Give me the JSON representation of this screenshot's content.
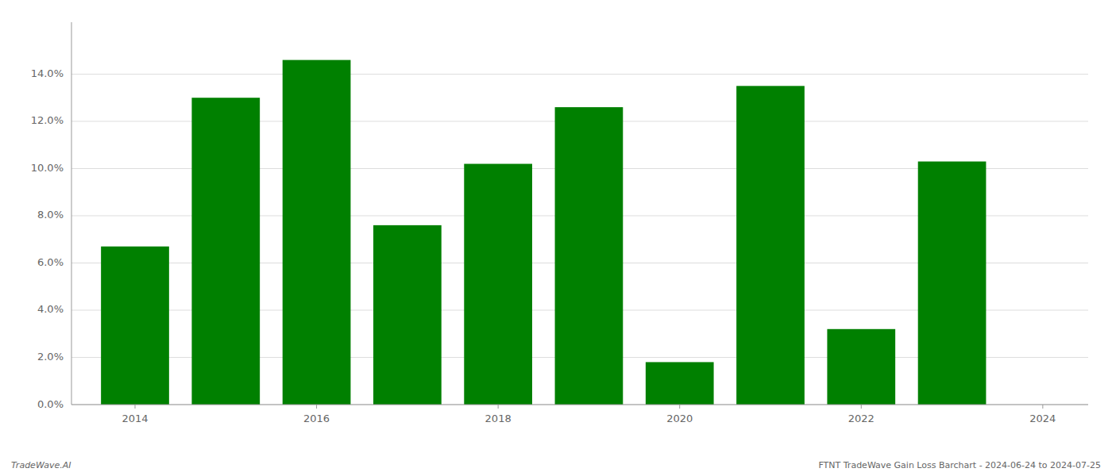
{
  "chart_data": {
    "type": "bar",
    "x": [
      2014,
      2015,
      2016,
      2017,
      2018,
      2019,
      2020,
      2021,
      2022,
      2023
    ],
    "values": [
      0.067,
      0.13,
      0.146,
      0.076,
      0.102,
      0.126,
      0.018,
      0.135,
      0.032,
      0.103
    ],
    "color": "#008000",
    "xlim": [
      2013.3,
      2024.5
    ],
    "xticks": [
      2014,
      2016,
      2018,
      2020,
      2022,
      2024
    ],
    "ylim": [
      0,
      0.162
    ],
    "yticks": [
      {
        "value": 0.0,
        "label": "0.0%"
      },
      {
        "value": 0.02,
        "label": "2.0%"
      },
      {
        "value": 0.04,
        "label": "4.0%"
      },
      {
        "value": 0.06,
        "label": "6.0%"
      },
      {
        "value": 0.08,
        "label": "8.0%"
      },
      {
        "value": 0.1,
        "label": "10.0%"
      },
      {
        "value": 0.12,
        "label": "12.0%"
      },
      {
        "value": 0.14,
        "label": "14.0%"
      }
    ],
    "grid": true,
    "annotations": [
      "TradeWave.AI",
      "FTNT TradeWave Gain Loss Barchart - 2024-06-24 to 2024-07-25"
    ]
  }
}
